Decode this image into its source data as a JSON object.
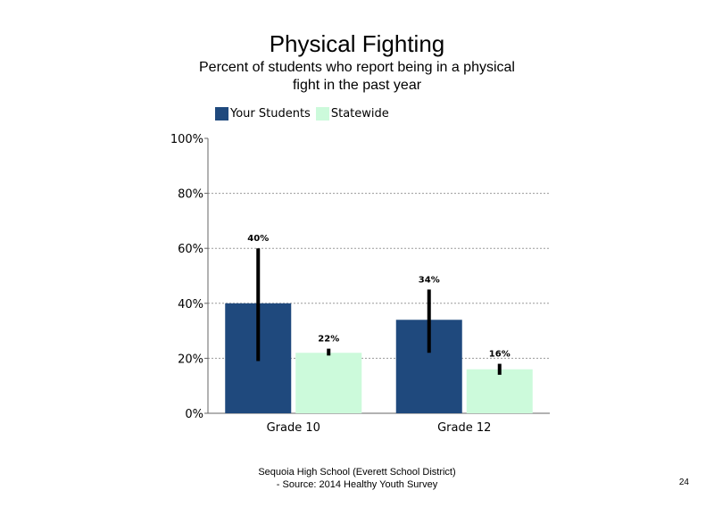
{
  "chart_data": {
    "type": "bar",
    "title": "Physical Fighting",
    "subtitle": "Percent of students  who report being in a physical fight in the past year",
    "categories": [
      "Grade 10",
      "Grade 12"
    ],
    "series": [
      {
        "name": "Your Students",
        "color": "#1f497d",
        "values": [
          40,
          34
        ],
        "labels": [
          "40%",
          "34%"
        ],
        "error_low": [
          19,
          22
        ],
        "error_high": [
          60,
          45
        ]
      },
      {
        "name": "Statewide",
        "color": "#ccfadb",
        "values": [
          22,
          16
        ],
        "labels": [
          "22%",
          "16%"
        ],
        "error_low": [
          21,
          14
        ],
        "error_high": [
          23.5,
          18
        ]
      }
    ],
    "yticks": [
      "0%",
      "20%",
      "40%",
      "60%",
      "80%",
      "100%"
    ],
    "ylim": [
      0,
      100
    ],
    "grid": true,
    "legend": "top"
  },
  "footer": {
    "line1": "Sequoia High School (Everett School District)",
    "line2": "- Source: 2014 Healthy  Youth Survey"
  },
  "page_number": "24"
}
